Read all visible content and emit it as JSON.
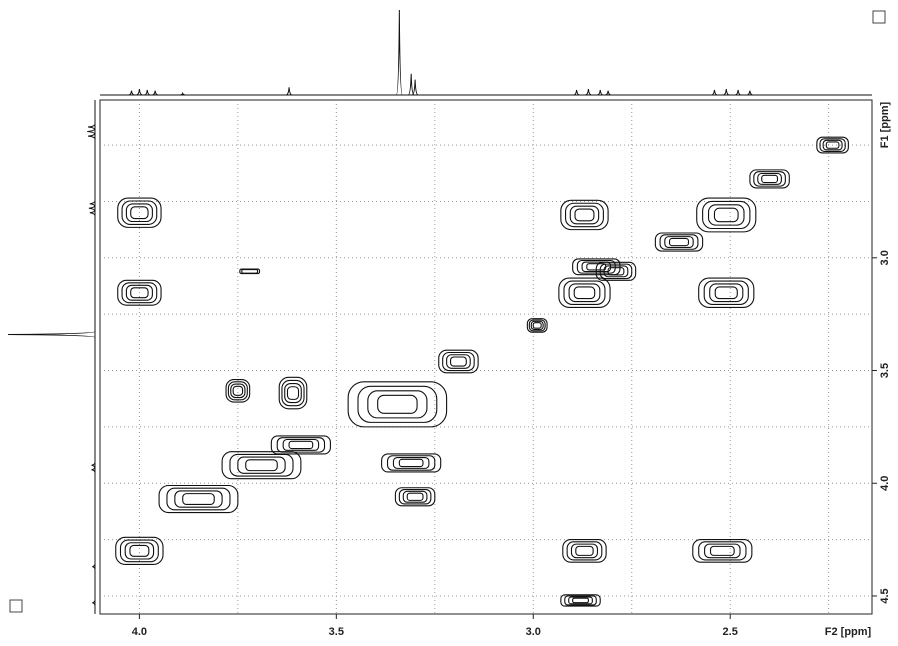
{
  "chart_data": {
    "type": "contour2d",
    "xlabel": "F2 [ppm]",
    "ylabel": "F1 [ppm]",
    "xlim": [
      4.1,
      2.14
    ],
    "ylim": [
      2.3,
      4.58
    ],
    "xticks": [
      {
        "value": 4,
        "label": "4.0"
      },
      3.5,
      {
        "value": 3,
        "label": "3.0"
      },
      2.5
    ],
    "yticks": [
      {
        "value": 3,
        "label": "3.0"
      },
      3.5,
      {
        "value": 4,
        "label": "4.0"
      },
      4.5
    ],
    "xminor": [
      3.75,
      3.25,
      2.75,
      2.25
    ],
    "yminor": [
      2.5,
      2.75,
      3.25,
      3.75,
      4.25
    ],
    "grid": true,
    "peaks": [
      {
        "f2": 4.0,
        "f1": 2.8,
        "w": 0.11,
        "h": 0.13
      },
      {
        "f2": 4.0,
        "f1": 3.155,
        "w": 0.11,
        "h": 0.11
      },
      {
        "f2": 4.0,
        "f1": 4.3,
        "w": 0.12,
        "h": 0.12
      },
      {
        "f2": 2.87,
        "f1": 2.81,
        "w": 0.12,
        "h": 0.13
      },
      {
        "f2": 2.87,
        "f1": 3.155,
        "w": 0.13,
        "h": 0.13
      },
      {
        "f2": 2.87,
        "f1": 4.3,
        "w": 0.11,
        "h": 0.1
      },
      {
        "f2": 2.51,
        "f1": 2.81,
        "w": 0.15,
        "h": 0.15
      },
      {
        "f2": 2.51,
        "f1": 3.155,
        "w": 0.14,
        "h": 0.13
      },
      {
        "f2": 2.52,
        "f1": 4.3,
        "w": 0.15,
        "h": 0.1
      },
      {
        "f2": 3.345,
        "f1": 3.65,
        "w": 0.25,
        "h": 0.2
      },
      {
        "f2": 3.69,
        "f1": 3.92,
        "w": 0.2,
        "h": 0.12
      },
      {
        "f2": 3.75,
        "f1": 3.59,
        "w": 0.06,
        "h": 0.1
      },
      {
        "f2": 3.61,
        "f1": 3.6,
        "w": 0.07,
        "h": 0.14
      },
      {
        "f2": 3.3,
        "f1": 4.06,
        "w": 0.1,
        "h": 0.08
      },
      {
        "f2": 3.31,
        "f1": 3.91,
        "w": 0.15,
        "h": 0.08
      },
      {
        "f2": 2.99,
        "f1": 3.3,
        "w": 0.05,
        "h": 0.06
      },
      {
        "f2": 2.79,
        "f1": 3.06,
        "w": 0.1,
        "h": 0.08
      },
      {
        "f2": 2.63,
        "f1": 2.93,
        "w": 0.12,
        "h": 0.08
      },
      {
        "f2": 2.4,
        "f1": 2.65,
        "w": 0.1,
        "h": 0.08
      },
      {
        "f2": 3.85,
        "f1": 4.07,
        "w": 0.2,
        "h": 0.12
      },
      {
        "f2": 3.59,
        "f1": 3.83,
        "w": 0.15,
        "h": 0.08
      },
      {
        "f2": 3.19,
        "f1": 3.46,
        "w": 0.1,
        "h": 0.1
      },
      {
        "f2": 2.88,
        "f1": 4.52,
        "w": 0.1,
        "h": 0.05
      },
      {
        "f2": 2.24,
        "f1": 2.5,
        "w": 0.08,
        "h": 0.07
      },
      {
        "f2": 2.84,
        "f1": 3.04,
        "w": 0.12,
        "h": 0.07
      },
      {
        "f2": 3.72,
        "f1": 3.06,
        "w": 0.05,
        "h": 0.02
      }
    ],
    "top_projection": {
      "positions": [
        4.02,
        4.0,
        3.98,
        3.96,
        3.89,
        3.62,
        3.34,
        3.31,
        3.3,
        2.89,
        2.86,
        2.83,
        2.81,
        2.54,
        2.51,
        2.48,
        2.45
      ],
      "heights": [
        5,
        7,
        6,
        5,
        2,
        9,
        100,
        25,
        18,
        6,
        7,
        6,
        5,
        6,
        7,
        6,
        5
      ]
    },
    "left_projection": {
      "positions": [
        2.42,
        2.44,
        2.46,
        2.76,
        2.78,
        2.8,
        3.34,
        3.92,
        3.94,
        4.37,
        4.53
      ],
      "heights": [
        8,
        9,
        8,
        6,
        7,
        6,
        100,
        4,
        4,
        3,
        3
      ]
    }
  }
}
